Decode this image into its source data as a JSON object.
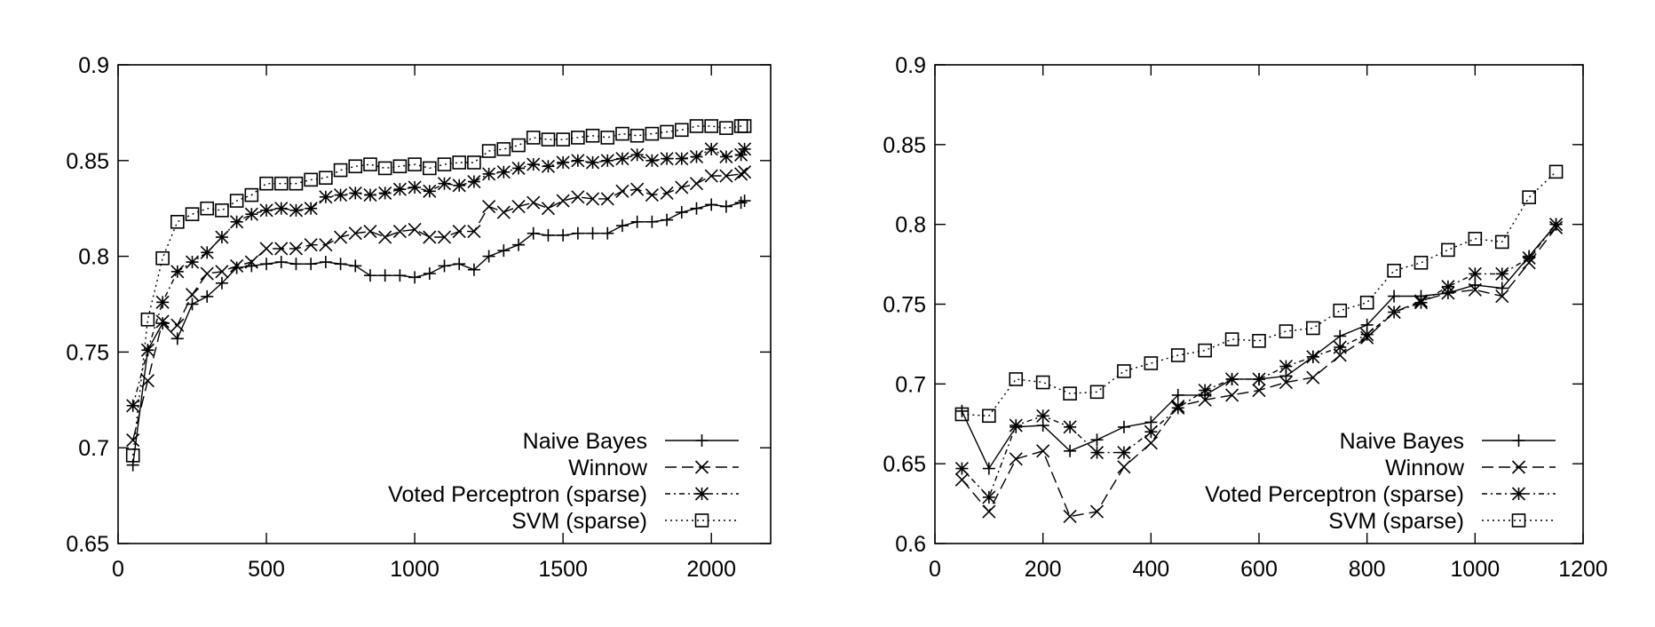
{
  "chart_data": [
    {
      "type": "line",
      "title": "",
      "xlabel": "",
      "ylabel": "",
      "xlim": [
        0,
        2200
      ],
      "ylim": [
        0.65,
        0.9
      ],
      "xticks": [
        0,
        500,
        1000,
        1500,
        2000
      ],
      "yticks": [
        0.65,
        0.7,
        0.75,
        0.8,
        0.85,
        0.9
      ],
      "xtick_labels": [
        "0",
        "500",
        "1000",
        "1500",
        "2000"
      ],
      "ytick_labels": [
        "0.65",
        "0.7",
        "0.75",
        "0.8",
        "0.85",
        "0.9"
      ],
      "grid": false,
      "legend_position": "bottom-right",
      "series": [
        {
          "name": "Naive Bayes",
          "marker": "plus",
          "dash": "solid",
          "x": [
            50,
            100,
            150,
            200,
            250,
            300,
            350,
            400,
            450,
            500,
            550,
            600,
            650,
            700,
            750,
            800,
            850,
            900,
            950,
            1000,
            1050,
            1100,
            1150,
            1200,
            1250,
            1300,
            1350,
            1400,
            1450,
            1500,
            1550,
            1600,
            1650,
            1700,
            1750,
            1800,
            1850,
            1900,
            1950,
            2000,
            2050,
            2100,
            2112
          ],
          "values": [
            0.691,
            0.751,
            0.765,
            0.757,
            0.775,
            0.779,
            0.786,
            0.794,
            0.795,
            0.796,
            0.797,
            0.796,
            0.796,
            0.797,
            0.796,
            0.795,
            0.79,
            0.79,
            0.79,
            0.789,
            0.791,
            0.795,
            0.796,
            0.793,
            0.8,
            0.803,
            0.806,
            0.812,
            0.811,
            0.811,
            0.812,
            0.812,
            0.812,
            0.816,
            0.818,
            0.818,
            0.819,
            0.823,
            0.825,
            0.827,
            0.826,
            0.828,
            0.829
          ]
        },
        {
          "name": "Winnow",
          "marker": "x",
          "dash": "dashed",
          "x": [
            50,
            100,
            150,
            200,
            250,
            300,
            350,
            400,
            450,
            500,
            550,
            600,
            650,
            700,
            750,
            800,
            850,
            900,
            950,
            1000,
            1050,
            1100,
            1150,
            1200,
            1250,
            1300,
            1350,
            1400,
            1450,
            1500,
            1550,
            1600,
            1650,
            1700,
            1750,
            1800,
            1850,
            1900,
            1950,
            2000,
            2050,
            2100,
            2112
          ],
          "values": [
            0.704,
            0.735,
            0.766,
            0.764,
            0.78,
            0.791,
            0.792,
            0.795,
            0.797,
            0.804,
            0.804,
            0.804,
            0.806,
            0.806,
            0.81,
            0.812,
            0.813,
            0.81,
            0.813,
            0.814,
            0.81,
            0.81,
            0.813,
            0.813,
            0.826,
            0.823,
            0.826,
            0.828,
            0.825,
            0.829,
            0.831,
            0.83,
            0.83,
            0.834,
            0.835,
            0.832,
            0.833,
            0.836,
            0.838,
            0.842,
            0.842,
            0.843,
            0.844
          ]
        },
        {
          "name": "Voted Perceptron (sparse)",
          "marker": "asterisk",
          "dash": "dashdot",
          "x": [
            50,
            100,
            150,
            200,
            250,
            300,
            350,
            400,
            450,
            500,
            550,
            600,
            650,
            700,
            750,
            800,
            850,
            900,
            950,
            1000,
            1050,
            1100,
            1150,
            1200,
            1250,
            1300,
            1350,
            1400,
            1450,
            1500,
            1550,
            1600,
            1650,
            1700,
            1750,
            1800,
            1850,
            1900,
            1950,
            2000,
            2050,
            2100,
            2112
          ],
          "values": [
            0.722,
            0.751,
            0.776,
            0.792,
            0.797,
            0.802,
            0.81,
            0.818,
            0.822,
            0.824,
            0.825,
            0.824,
            0.825,
            0.831,
            0.832,
            0.833,
            0.832,
            0.833,
            0.835,
            0.836,
            0.834,
            0.838,
            0.837,
            0.839,
            0.843,
            0.844,
            0.846,
            0.848,
            0.847,
            0.849,
            0.85,
            0.849,
            0.85,
            0.851,
            0.853,
            0.85,
            0.851,
            0.851,
            0.852,
            0.856,
            0.852,
            0.853,
            0.856
          ]
        },
        {
          "name": "SVM (sparse)",
          "marker": "square",
          "dash": "dotted",
          "x": [
            50,
            100,
            150,
            200,
            250,
            300,
            350,
            400,
            450,
            500,
            550,
            600,
            650,
            700,
            750,
            800,
            850,
            900,
            950,
            1000,
            1050,
            1100,
            1150,
            1200,
            1250,
            1300,
            1350,
            1400,
            1450,
            1500,
            1550,
            1600,
            1650,
            1700,
            1750,
            1800,
            1850,
            1900,
            1950,
            2000,
            2050,
            2100,
            2112
          ],
          "values": [
            0.696,
            0.767,
            0.799,
            0.818,
            0.822,
            0.825,
            0.824,
            0.829,
            0.832,
            0.838,
            0.838,
            0.838,
            0.84,
            0.841,
            0.845,
            0.847,
            0.848,
            0.846,
            0.847,
            0.848,
            0.846,
            0.848,
            0.849,
            0.849,
            0.855,
            0.856,
            0.858,
            0.862,
            0.861,
            0.861,
            0.862,
            0.863,
            0.862,
            0.864,
            0.863,
            0.864,
            0.865,
            0.866,
            0.868,
            0.868,
            0.867,
            0.868,
            0.868
          ]
        }
      ]
    },
    {
      "type": "line",
      "title": "",
      "xlabel": "",
      "ylabel": "",
      "xlim": [
        0,
        1200
      ],
      "ylim": [
        0.6,
        0.9
      ],
      "xticks": [
        0,
        200,
        400,
        600,
        800,
        1000,
        1200
      ],
      "yticks": [
        0.6,
        0.65,
        0.7,
        0.75,
        0.8,
        0.85,
        0.9
      ],
      "xtick_labels": [
        "0",
        "200",
        "400",
        "600",
        "800",
        "1000",
        "1200"
      ],
      "ytick_labels": [
        "0.6",
        "0.65",
        "0.7",
        "0.75",
        "0.8",
        "0.85",
        "0.9"
      ],
      "grid": false,
      "legend_position": "bottom-right",
      "series": [
        {
          "name": "Naive Bayes",
          "marker": "plus",
          "dash": "solid",
          "x": [
            50,
            100,
            150,
            200,
            250,
            300,
            350,
            400,
            450,
            500,
            550,
            600,
            650,
            700,
            750,
            800,
            850,
            900,
            950,
            1000,
            1050,
            1100,
            1150
          ],
          "values": [
            0.683,
            0.647,
            0.673,
            0.674,
            0.658,
            0.665,
            0.673,
            0.676,
            0.693,
            0.693,
            0.703,
            0.703,
            0.705,
            0.717,
            0.73,
            0.737,
            0.755,
            0.755,
            0.757,
            0.762,
            0.76,
            0.78,
            0.8
          ]
        },
        {
          "name": "Winnow",
          "marker": "x",
          "dash": "dashed",
          "x": [
            50,
            100,
            150,
            200,
            250,
            300,
            350,
            400,
            450,
            500,
            550,
            600,
            650,
            700,
            750,
            800,
            850,
            900,
            950,
            1000,
            1050,
            1100,
            1150
          ],
          "values": [
            0.64,
            0.62,
            0.653,
            0.658,
            0.617,
            0.62,
            0.648,
            0.663,
            0.686,
            0.69,
            0.693,
            0.696,
            0.701,
            0.704,
            0.718,
            0.729,
            0.745,
            0.752,
            0.757,
            0.759,
            0.755,
            0.776,
            0.798
          ]
        },
        {
          "name": "Voted Perceptron (sparse)",
          "marker": "asterisk",
          "dash": "dashdot",
          "x": [
            50,
            100,
            150,
            200,
            250,
            300,
            350,
            400,
            450,
            500,
            550,
            600,
            650,
            700,
            750,
            800,
            850,
            900,
            950,
            1000,
            1050,
            1100,
            1150
          ],
          "values": [
            0.647,
            0.629,
            0.674,
            0.68,
            0.673,
            0.657,
            0.657,
            0.67,
            0.685,
            0.696,
            0.703,
            0.703,
            0.711,
            0.717,
            0.723,
            0.731,
            0.745,
            0.751,
            0.761,
            0.769,
            0.769,
            0.779,
            0.8
          ]
        },
        {
          "name": "SVM (sparse)",
          "marker": "square",
          "dash": "dotted",
          "x": [
            50,
            100,
            150,
            200,
            250,
            300,
            350,
            400,
            450,
            500,
            550,
            600,
            650,
            700,
            750,
            800,
            850,
            900,
            950,
            1000,
            1050,
            1100,
            1150
          ],
          "values": [
            0.681,
            0.68,
            0.703,
            0.701,
            0.694,
            0.695,
            0.708,
            0.713,
            0.718,
            0.721,
            0.728,
            0.727,
            0.733,
            0.735,
            0.746,
            0.751,
            0.771,
            0.776,
            0.784,
            0.791,
            0.789,
            0.817,
            0.833
          ]
        }
      ]
    }
  ]
}
